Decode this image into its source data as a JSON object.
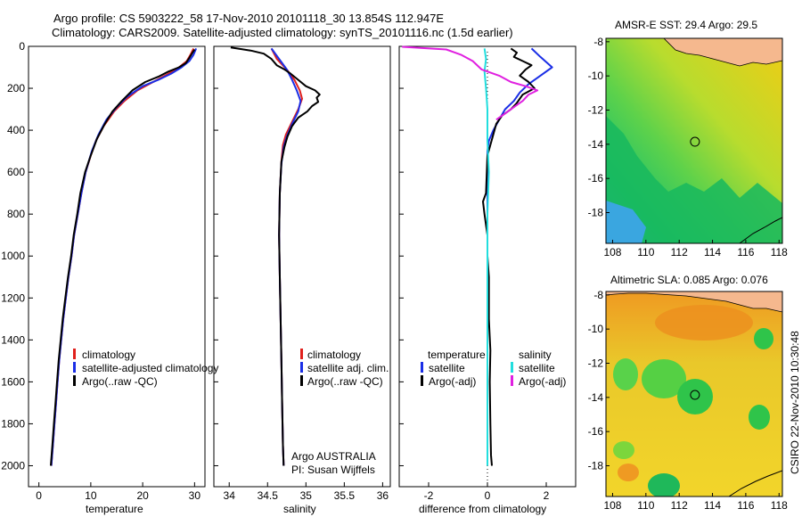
{
  "header": {
    "title1": "Argo profile: CS 5903222_58 17-Nov-2010 20101118_30 13.854S 112.947E",
    "title2": "Climatology: CARS2009. Satellite-adjusted climatology: synTS_20101116.nc (1.5d earlier)"
  },
  "side_stamp": "CSIRO 22-Nov-2010 10:30:48",
  "colors": {
    "clim": "#e0201c",
    "sat": "#1a2ee6",
    "argo": "#000000",
    "sat_sal": "#22dede",
    "argo_sal": "#e020e0",
    "land": "#f5b88e"
  },
  "chart_data": [
    {
      "type": "line",
      "id": "temperature",
      "xlabel": "temperature",
      "xlim": [
        -2,
        32
      ],
      "ylim": [
        0,
        2100
      ],
      "x_ticks": [
        0,
        10,
        20,
        30
      ],
      "y_ticks": [
        0,
        200,
        400,
        600,
        800,
        1000,
        1200,
        1400,
        1600,
        1800,
        2000
      ],
      "y_tick_labels": [
        "0",
        "200",
        "400",
        "600",
        "800",
        "1000",
        "1200",
        "1400",
        "1600",
        "1800",
        "2000"
      ],
      "legend": [
        "climatology",
        "satellite-adjusted climatology",
        "Argo(..raw -QC)"
      ],
      "series": [
        {
          "name": "climatology",
          "color": "#e0201c",
          "points": [
            [
              29.8,
              10
            ],
            [
              29.2,
              40
            ],
            [
              28.5,
              70
            ],
            [
              27,
              100
            ],
            [
              25,
              130
            ],
            [
              22,
              170
            ],
            [
              19,
              210
            ],
            [
              16.5,
              260
            ],
            [
              14.5,
              310
            ],
            [
              12.5,
              380
            ],
            [
              11,
              450
            ],
            [
              10,
              520
            ],
            [
              9,
              600
            ],
            [
              8.2,
              700
            ],
            [
              7.5,
              800
            ],
            [
              6.8,
              900
            ],
            [
              6.3,
              1000
            ],
            [
              5.7,
              1100
            ],
            [
              5.2,
              1200
            ],
            [
              4.7,
              1300
            ],
            [
              4.3,
              1400
            ],
            [
              3.9,
              1500
            ],
            [
              3.6,
              1600
            ],
            [
              3.3,
              1700
            ],
            [
              3.0,
              1800
            ],
            [
              2.7,
              1900
            ],
            [
              2.4,
              2000
            ]
          ]
        },
        {
          "name": "satellite-adjusted climatology",
          "color": "#1a2ee6",
          "points": [
            [
              30.3,
              10
            ],
            [
              29.8,
              40
            ],
            [
              29,
              70
            ],
            [
              27.5,
              100
            ],
            [
              25.5,
              130
            ],
            [
              23,
              160
            ],
            [
              20,
              190
            ],
            [
              17,
              240
            ],
            [
              15,
              290
            ],
            [
              13,
              350
            ],
            [
              11.5,
              420
            ],
            [
              10.2,
              500
            ],
            [
              9,
              600
            ],
            [
              8.2,
              700
            ],
            [
              7.5,
              800
            ],
            [
              6.8,
              900
            ],
            [
              6.3,
              1000
            ],
            [
              5.7,
              1100
            ],
            [
              5.2,
              1200
            ],
            [
              4.7,
              1300
            ],
            [
              4.3,
              1400
            ],
            [
              3.9,
              1500
            ],
            [
              3.6,
              1600
            ],
            [
              3.3,
              1700
            ],
            [
              3.0,
              1800
            ],
            [
              2.7,
              1900
            ],
            [
              2.4,
              2000
            ]
          ]
        },
        {
          "name": "Argo(..raw -QC)",
          "color": "#000000",
          "points": [
            [
              30,
              15
            ],
            [
              29.6,
              30
            ],
            [
              29,
              55
            ],
            [
              28.3,
              80
            ],
            [
              27,
              100
            ],
            [
              25,
              120
            ],
            [
              23,
              145
            ],
            [
              20.5,
              170
            ],
            [
              18,
              210
            ],
            [
              16,
              260
            ],
            [
              14.2,
              310
            ],
            [
              12.7,
              370
            ],
            [
              11.2,
              440
            ],
            [
              10,
              520
            ],
            [
              8.9,
              600
            ],
            [
              8,
              700
            ],
            [
              7.4,
              800
            ],
            [
              6.7,
              900
            ],
            [
              6.2,
              1000
            ],
            [
              5.6,
              1100
            ],
            [
              5.1,
              1200
            ],
            [
              4.6,
              1300
            ],
            [
              4.2,
              1400
            ],
            [
              3.8,
              1500
            ],
            [
              3.5,
              1600
            ],
            [
              3.2,
              1700
            ],
            [
              2.9,
              1800
            ],
            [
              2.6,
              1900
            ],
            [
              2.3,
              2000
            ]
          ]
        }
      ]
    },
    {
      "type": "line",
      "id": "salinity",
      "xlabel": "salinity",
      "xlim": [
        33.8,
        36.1
      ],
      "ylim": [
        0,
        2100
      ],
      "x_ticks": [
        34,
        34.5,
        35,
        35.5,
        36
      ],
      "legend": [
        "climatology",
        "satellite adj. clim.",
        "Argo(..raw -QC)"
      ],
      "annotation": [
        "Argo AUSTRALIA",
        "PI: Susan Wijffels"
      ],
      "series": [
        {
          "name": "climatology",
          "color": "#e0201c",
          "points": [
            [
              34.55,
              10
            ],
            [
              34.62,
              60
            ],
            [
              34.75,
              110
            ],
            [
              34.85,
              160
            ],
            [
              34.92,
              210
            ],
            [
              34.95,
              250
            ],
            [
              34.9,
              300
            ],
            [
              34.82,
              360
            ],
            [
              34.74,
              420
            ],
            [
              34.7,
              470
            ],
            [
              34.68,
              550
            ],
            [
              34.66,
              700
            ],
            [
              34.65,
              900
            ],
            [
              34.66,
              1100
            ],
            [
              34.67,
              1300
            ],
            [
              34.68,
              1500
            ],
            [
              34.69,
              1700
            ],
            [
              34.7,
              1900
            ],
            [
              34.71,
              2000
            ]
          ]
        },
        {
          "name": "satellite adj. clim.",
          "color": "#1a2ee6",
          "points": [
            [
              34.55,
              10
            ],
            [
              34.65,
              60
            ],
            [
              34.75,
              110
            ],
            [
              34.82,
              160
            ],
            [
              34.88,
              210
            ],
            [
              34.93,
              260
            ],
            [
              34.9,
              310
            ],
            [
              34.82,
              370
            ],
            [
              34.75,
              430
            ],
            [
              34.71,
              480
            ],
            [
              34.68,
              560
            ],
            [
              34.66,
              700
            ],
            [
              34.65,
              900
            ],
            [
              34.66,
              1100
            ],
            [
              34.67,
              1300
            ],
            [
              34.68,
              1500
            ],
            [
              34.69,
              1700
            ],
            [
              34.7,
              1900
            ],
            [
              34.71,
              2000
            ]
          ]
        },
        {
          "name": "Argo(..raw -QC)",
          "color": "#000000",
          "points": [
            [
              34.02,
              5
            ],
            [
              34.28,
              20
            ],
            [
              34.45,
              35
            ],
            [
              34.55,
              60
            ],
            [
              34.62,
              90
            ],
            [
              34.72,
              110
            ],
            [
              34.8,
              130
            ],
            [
              34.9,
              160
            ],
            [
              35.0,
              190
            ],
            [
              35.12,
              210
            ],
            [
              35.18,
              230
            ],
            [
              35.14,
              245
            ],
            [
              35.16,
              265
            ],
            [
              35.08,
              285
            ],
            [
              35.02,
              310
            ],
            [
              34.9,
              340
            ],
            [
              34.82,
              380
            ],
            [
              34.76,
              430
            ],
            [
              34.72,
              480
            ],
            [
              34.68,
              550
            ],
            [
              34.66,
              700
            ],
            [
              34.65,
              900
            ],
            [
              34.66,
              1100
            ],
            [
              34.67,
              1300
            ],
            [
              34.68,
              1500
            ],
            [
              34.69,
              1700
            ],
            [
              34.7,
              1900
            ],
            [
              34.71,
              2000
            ]
          ]
        }
      ]
    },
    {
      "type": "line",
      "id": "difference",
      "xlabel": "difference from climatology",
      "xlim": [
        -3,
        3
      ],
      "ylim": [
        0,
        2100
      ],
      "x_ticks": [
        -2,
        0,
        2
      ],
      "legend_temperature": [
        "temperature",
        "satellite",
        "Argo(-adj)"
      ],
      "legend_salinity": [
        "salinity",
        "satellite",
        "Argo(-adj)"
      ],
      "series": [
        {
          "name": "temperature satellite",
          "color": "#1a2ee6",
          "points": [
            [
              1.5,
              10
            ],
            [
              1.8,
              50
            ],
            [
              2.2,
              100
            ],
            [
              1.8,
              140
            ],
            [
              1.4,
              180
            ],
            [
              1.1,
              220
            ],
            [
              0.9,
              260
            ],
            [
              0.6,
              300
            ],
            [
              0.4,
              350
            ],
            [
              0.2,
              400
            ],
            [
              0.05,
              450
            ],
            [
              0,
              500
            ],
            [
              0,
              2000
            ]
          ]
        },
        {
          "name": "temperature Argo(-adj)",
          "color": "#000000",
          "points": [
            [
              0.8,
              10
            ],
            [
              1.0,
              30
            ],
            [
              0.9,
              50
            ],
            [
              1.2,
              70
            ],
            [
              1.5,
              90
            ],
            [
              1.3,
              110
            ],
            [
              1.1,
              140
            ],
            [
              1.4,
              170
            ],
            [
              1.6,
              200
            ],
            [
              1.2,
              230
            ],
            [
              1.0,
              270
            ],
            [
              0.8,
              300
            ],
            [
              0.5,
              330
            ],
            [
              0.3,
              370
            ],
            [
              0.2,
              420
            ],
            [
              0.1,
              470
            ],
            [
              0,
              520
            ],
            [
              -0.05,
              700
            ],
            [
              -0.15,
              740
            ],
            [
              -0.1,
              800
            ],
            [
              0,
              900
            ],
            [
              0,
              1000
            ],
            [
              0.05,
              1100
            ],
            [
              0.05,
              1300
            ],
            [
              0.1,
              1450
            ],
            [
              0.08,
              1600
            ],
            [
              0.1,
              1800
            ],
            [
              0.12,
              1950
            ],
            [
              0.15,
              2000
            ]
          ]
        },
        {
          "name": "salinity satellite",
          "color": "#22dede",
          "points": [
            [
              -0.1,
              10
            ],
            [
              -0.05,
              60
            ],
            [
              -0.1,
              120
            ],
            [
              -0.05,
              200
            ],
            [
              0,
              300
            ],
            [
              0,
              450
            ],
            [
              0.05,
              600
            ],
            [
              0,
              800
            ],
            [
              0,
              1000
            ],
            [
              0,
              1200
            ],
            [
              0,
              1500
            ],
            [
              0,
              1800
            ],
            [
              0,
              2000
            ]
          ]
        },
        {
          "name": "salinity Argo(-adj)",
          "color": "#e020e0",
          "points": [
            [
              -2.9,
              2
            ],
            [
              -1.4,
              15
            ],
            [
              -0.9,
              40
            ],
            [
              -0.5,
              70
            ],
            [
              -0.2,
              110
            ],
            [
              0.4,
              140
            ],
            [
              0.8,
              170
            ],
            [
              1.3,
              190
            ],
            [
              1.7,
              210
            ],
            [
              1.4,
              230
            ],
            [
              1.2,
              260
            ],
            [
              0.9,
              290
            ],
            [
              0.6,
              320
            ],
            [
              0.3,
              350
            ]
          ]
        }
      ]
    },
    {
      "type": "heatmap",
      "id": "sst_map",
      "title": "AMSR-E SST: 29.4 Argo: 29.5",
      "x_ticks": [
        108,
        110,
        112,
        114,
        116,
        118
      ],
      "y_ticks": [
        -8,
        -10,
        -12,
        -14,
        -16,
        -18
      ],
      "xlim": [
        107.6,
        118.2
      ],
      "ylim": [
        -19.8,
        -7.8
      ],
      "argo_position": [
        112.947,
        -13.854
      ]
    },
    {
      "type": "heatmap",
      "id": "sla_map",
      "title": "Altimetric SLA: 0.085 Argo: 0.076",
      "x_ticks": [
        108,
        110,
        112,
        114,
        116,
        118
      ],
      "y_ticks": [
        -8,
        -10,
        -12,
        -14,
        -16,
        -18
      ],
      "xlim": [
        107.6,
        118.2
      ],
      "ylim": [
        -19.8,
        -7.8
      ],
      "argo_position": [
        112.947,
        -13.854
      ]
    }
  ]
}
